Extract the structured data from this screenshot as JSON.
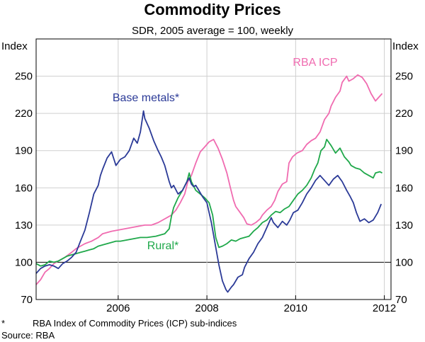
{
  "chart_data": {
    "type": "line",
    "title": "Commodity Prices",
    "subtitle": "SDR, 2005 average = 100, weekly",
    "left_axis_label": "Index",
    "right_axis_label": "Index",
    "x_range": [
      2004.5,
      2012.5
    ],
    "y_range": [
      70,
      280
    ],
    "y_ticks": [
      70,
      100,
      130,
      160,
      190,
      220,
      250
    ],
    "x_ticks": [
      {
        "label": "2006",
        "value": 2006.35
      },
      {
        "label": "2008",
        "value": 2008.35
      },
      {
        "label": "2010",
        "value": 2010.35
      },
      {
        "label": "2012",
        "value": 2012.35
      }
    ],
    "baseline": 100,
    "annotations": [
      {
        "text": "RBA ICP",
        "series": "rba_icp"
      },
      {
        "text": "Base metals*",
        "series": "base_metals"
      },
      {
        "text": "Rural*",
        "series": "rural"
      }
    ],
    "series": [
      {
        "key": "rba_icp",
        "name": "RBA ICP",
        "color": "#f06bb0",
        "points": [
          [
            2004.5,
            82
          ],
          [
            2004.6,
            86
          ],
          [
            2004.7,
            92
          ],
          [
            2004.8,
            95
          ],
          [
            2004.9,
            99
          ],
          [
            2005.0,
            101
          ],
          [
            2005.15,
            104
          ],
          [
            2005.3,
            108
          ],
          [
            2005.4,
            111
          ],
          [
            2005.5,
            113
          ],
          [
            2005.6,
            115
          ],
          [
            2005.75,
            117
          ],
          [
            2005.9,
            120
          ],
          [
            2006.0,
            123
          ],
          [
            2006.1,
            124
          ],
          [
            2006.2,
            125
          ],
          [
            2006.35,
            126
          ],
          [
            2006.5,
            127
          ],
          [
            2006.65,
            128
          ],
          [
            2006.8,
            129
          ],
          [
            2006.95,
            130
          ],
          [
            2007.1,
            130
          ],
          [
            2007.25,
            132
          ],
          [
            2007.4,
            135
          ],
          [
            2007.55,
            138
          ],
          [
            2007.65,
            142
          ],
          [
            2007.75,
            148
          ],
          [
            2007.85,
            155
          ],
          [
            2007.92,
            165
          ],
          [
            2008.0,
            170
          ],
          [
            2008.1,
            180
          ],
          [
            2008.2,
            189
          ],
          [
            2008.3,
            193
          ],
          [
            2008.4,
            197
          ],
          [
            2008.5,
            199
          ],
          [
            2008.6,
            192
          ],
          [
            2008.7,
            183
          ],
          [
            2008.8,
            172
          ],
          [
            2008.88,
            160
          ],
          [
            2008.95,
            150
          ],
          [
            2009.0,
            145
          ],
          [
            2009.1,
            140
          ],
          [
            2009.18,
            136
          ],
          [
            2009.25,
            131
          ],
          [
            2009.35,
            130
          ],
          [
            2009.45,
            132
          ],
          [
            2009.55,
            135
          ],
          [
            2009.6,
            138
          ],
          [
            2009.7,
            142
          ],
          [
            2009.8,
            145
          ],
          [
            2009.88,
            150
          ],
          [
            2009.95,
            157
          ],
          [
            2010.05,
            163
          ],
          [
            2010.15,
            165
          ],
          [
            2010.2,
            180
          ],
          [
            2010.28,
            185
          ],
          [
            2010.38,
            188
          ],
          [
            2010.5,
            190
          ],
          [
            2010.6,
            195
          ],
          [
            2010.7,
            198
          ],
          [
            2010.8,
            200
          ],
          [
            2010.9,
            205
          ],
          [
            2011.0,
            215
          ],
          [
            2011.1,
            220
          ],
          [
            2011.15,
            226
          ],
          [
            2011.25,
            233
          ],
          [
            2011.35,
            238
          ],
          [
            2011.4,
            245
          ],
          [
            2011.5,
            250
          ],
          [
            2011.55,
            246
          ],
          [
            2011.65,
            248
          ],
          [
            2011.75,
            251
          ],
          [
            2011.85,
            249
          ],
          [
            2011.95,
            244
          ],
          [
            2012.05,
            236
          ],
          [
            2012.15,
            230
          ],
          [
            2012.2,
            232
          ],
          [
            2012.3,
            236
          ]
        ]
      },
      {
        "key": "base_metals",
        "name": "Base metals*",
        "color": "#2b3a97",
        "points": [
          [
            2004.5,
            91
          ],
          [
            2004.6,
            95
          ],
          [
            2004.7,
            97
          ],
          [
            2004.8,
            98
          ],
          [
            2004.9,
            97
          ],
          [
            2005.0,
            95
          ],
          [
            2005.1,
            99
          ],
          [
            2005.2,
            101
          ],
          [
            2005.3,
            104
          ],
          [
            2005.4,
            108
          ],
          [
            2005.5,
            117
          ],
          [
            2005.6,
            126
          ],
          [
            2005.7,
            140
          ],
          [
            2005.8,
            155
          ],
          [
            2005.9,
            162
          ],
          [
            2005.95,
            170
          ],
          [
            2006.0,
            175
          ],
          [
            2006.1,
            184
          ],
          [
            2006.2,
            189
          ],
          [
            2006.3,
            178
          ],
          [
            2006.4,
            183
          ],
          [
            2006.5,
            185
          ],
          [
            2006.6,
            190
          ],
          [
            2006.7,
            200
          ],
          [
            2006.78,
            196
          ],
          [
            2006.85,
            205
          ],
          [
            2006.92,
            222
          ],
          [
            2006.95,
            216
          ],
          [
            2007.05,
            208
          ],
          [
            2007.15,
            198
          ],
          [
            2007.25,
            190
          ],
          [
            2007.32,
            185
          ],
          [
            2007.4,
            178
          ],
          [
            2007.5,
            165
          ],
          [
            2007.55,
            160
          ],
          [
            2007.6,
            162
          ],
          [
            2007.7,
            155
          ],
          [
            2007.8,
            158
          ],
          [
            2007.9,
            165
          ],
          [
            2007.95,
            168
          ],
          [
            2008.0,
            163
          ],
          [
            2008.05,
            161
          ],
          [
            2008.1,
            162
          ],
          [
            2008.15,
            159
          ],
          [
            2008.25,
            153
          ],
          [
            2008.35,
            148
          ],
          [
            2008.45,
            132
          ],
          [
            2008.55,
            112
          ],
          [
            2008.62,
            98
          ],
          [
            2008.7,
            85
          ],
          [
            2008.78,
            78
          ],
          [
            2008.82,
            76
          ],
          [
            2008.9,
            80
          ],
          [
            2008.95,
            82
          ],
          [
            2009.05,
            88
          ],
          [
            2009.15,
            90
          ],
          [
            2009.2,
            96
          ],
          [
            2009.3,
            103
          ],
          [
            2009.4,
            108
          ],
          [
            2009.5,
            115
          ],
          [
            2009.6,
            120
          ],
          [
            2009.7,
            128
          ],
          [
            2009.8,
            136
          ],
          [
            2009.85,
            132
          ],
          [
            2009.95,
            128
          ],
          [
            2010.05,
            133
          ],
          [
            2010.15,
            130
          ],
          [
            2010.22,
            134
          ],
          [
            2010.3,
            140
          ],
          [
            2010.4,
            142
          ],
          [
            2010.5,
            148
          ],
          [
            2010.6,
            155
          ],
          [
            2010.7,
            160
          ],
          [
            2010.8,
            166
          ],
          [
            2010.9,
            170
          ],
          [
            2011.0,
            166
          ],
          [
            2011.1,
            162
          ],
          [
            2011.2,
            167
          ],
          [
            2011.3,
            170
          ],
          [
            2011.4,
            165
          ],
          [
            2011.5,
            158
          ],
          [
            2011.58,
            153
          ],
          [
            2011.65,
            148
          ],
          [
            2011.72,
            140
          ],
          [
            2011.8,
            133
          ],
          [
            2011.9,
            135
          ],
          [
            2012.0,
            132
          ],
          [
            2012.1,
            134
          ],
          [
            2012.2,
            140
          ],
          [
            2012.28,
            147
          ]
        ]
      },
      {
        "key": "rural",
        "name": "Rural*",
        "color": "#1fa84a",
        "points": [
          [
            2004.5,
            99
          ],
          [
            2004.6,
            97
          ],
          [
            2004.7,
            98
          ],
          [
            2004.8,
            101
          ],
          [
            2004.9,
            100
          ],
          [
            2005.0,
            101
          ],
          [
            2005.1,
            103
          ],
          [
            2005.2,
            105
          ],
          [
            2005.3,
            106
          ],
          [
            2005.4,
            107
          ],
          [
            2005.5,
            108
          ],
          [
            2005.6,
            109
          ],
          [
            2005.7,
            110
          ],
          [
            2005.8,
            111
          ],
          [
            2005.9,
            113
          ],
          [
            2006.0,
            114
          ],
          [
            2006.1,
            115
          ],
          [
            2006.2,
            116
          ],
          [
            2006.3,
            117
          ],
          [
            2006.4,
            117
          ],
          [
            2006.55,
            118
          ],
          [
            2006.7,
            119
          ],
          [
            2006.85,
            120
          ],
          [
            2007.0,
            120
          ],
          [
            2007.2,
            121
          ],
          [
            2007.4,
            123
          ],
          [
            2007.5,
            127
          ],
          [
            2007.55,
            137
          ],
          [
            2007.6,
            144
          ],
          [
            2007.7,
            152
          ],
          [
            2007.8,
            158
          ],
          [
            2007.9,
            165
          ],
          [
            2007.95,
            172
          ],
          [
            2008.0,
            165
          ],
          [
            2008.1,
            158
          ],
          [
            2008.2,
            155
          ],
          [
            2008.3,
            152
          ],
          [
            2008.4,
            148
          ],
          [
            2008.48,
            138
          ],
          [
            2008.55,
            120
          ],
          [
            2008.62,
            112
          ],
          [
            2008.7,
            113
          ],
          [
            2008.8,
            115
          ],
          [
            2008.9,
            118
          ],
          [
            2009.0,
            117
          ],
          [
            2009.1,
            119
          ],
          [
            2009.2,
            120
          ],
          [
            2009.3,
            121
          ],
          [
            2009.4,
            125
          ],
          [
            2009.5,
            128
          ],
          [
            2009.6,
            132
          ],
          [
            2009.7,
            134
          ],
          [
            2009.8,
            138
          ],
          [
            2009.9,
            141
          ],
          [
            2010.0,
            140
          ],
          [
            2010.1,
            143
          ],
          [
            2010.2,
            145
          ],
          [
            2010.3,
            150
          ],
          [
            2010.4,
            155
          ],
          [
            2010.5,
            158
          ],
          [
            2010.6,
            162
          ],
          [
            2010.7,
            168
          ],
          [
            2010.78,
            175
          ],
          [
            2010.85,
            180
          ],
          [
            2010.92,
            190
          ],
          [
            2011.0,
            193
          ],
          [
            2011.05,
            199
          ],
          [
            2011.15,
            194
          ],
          [
            2011.25,
            188
          ],
          [
            2011.35,
            192
          ],
          [
            2011.45,
            185
          ],
          [
            2011.55,
            181
          ],
          [
            2011.6,
            178
          ],
          [
            2011.7,
            176
          ],
          [
            2011.8,
            175
          ],
          [
            2011.9,
            172
          ],
          [
            2012.0,
            170
          ],
          [
            2012.1,
            168
          ],
          [
            2012.15,
            172
          ],
          [
            2012.25,
            173
          ],
          [
            2012.3,
            172
          ]
        ]
      }
    ],
    "footnotes": [
      {
        "marker": "*",
        "text": "RBA Index of Commodity Prices (ICP) sub-indices"
      },
      {
        "text": "Source: RBA"
      }
    ]
  }
}
